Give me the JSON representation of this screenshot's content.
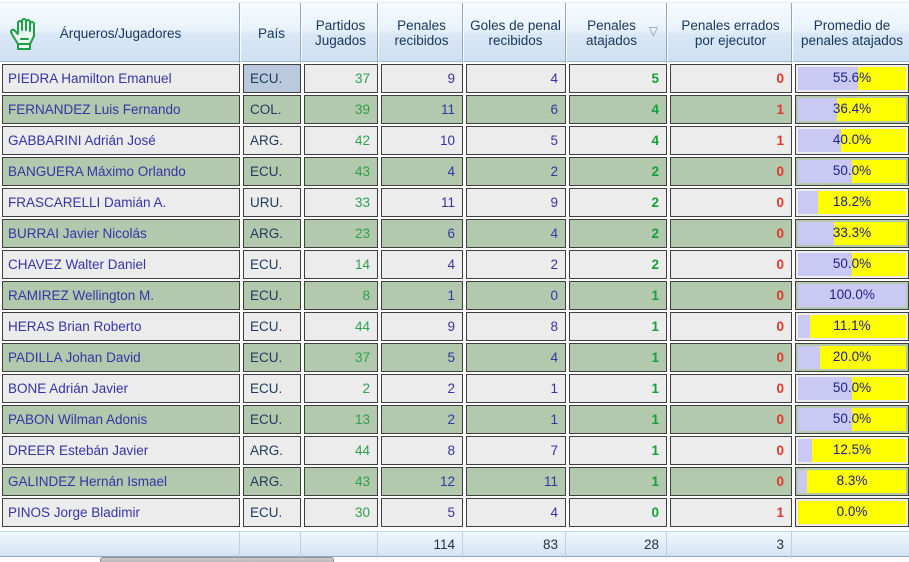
{
  "table": {
    "columns": [
      {
        "label": "Árqueros/Jugadores"
      },
      {
        "label": "País"
      },
      {
        "label": "Partidos Jugados"
      },
      {
        "label": "Penales recibidos"
      },
      {
        "label": "Goles de penal recibidos"
      },
      {
        "label": "Penales atajados",
        "sort_indicator": "▽",
        "sorted": "descending"
      },
      {
        "label": "Penales errados por ejecutor"
      },
      {
        "label": "Promedio de penales atajados"
      }
    ],
    "header_icon": "goalkeeper-glove-icon",
    "rows": [
      {
        "name": "PIEDRA Hamilton Emanuel",
        "pais": "ECU.",
        "pj": "37",
        "pr": "9",
        "gpr": "4",
        "pa": "5",
        "pe": "0",
        "prom": "55.6%",
        "pct": 55.6,
        "pais_selected": true
      },
      {
        "name": "FERNANDEZ Luis Fernando",
        "pais": "COL.",
        "pj": "39",
        "pr": "11",
        "gpr": "6",
        "pa": "4",
        "pe": "1",
        "prom": "36.4%",
        "pct": 36.4
      },
      {
        "name": "GABBARINI Adrián José",
        "pais": "ARG.",
        "pj": "42",
        "pr": "10",
        "gpr": "5",
        "pa": "4",
        "pe": "1",
        "prom": "40.0%",
        "pct": 40
      },
      {
        "name": "BANGUERA Máximo Orlando",
        "pais": "ECU.",
        "pj": "43",
        "pr": "4",
        "gpr": "2",
        "pa": "2",
        "pe": "0",
        "prom": "50.0%",
        "pct": 50
      },
      {
        "name": "FRASCARELLI Damián A.",
        "pais": "URU.",
        "pj": "33",
        "pr": "11",
        "gpr": "9",
        "pa": "2",
        "pe": "0",
        "prom": "18.2%",
        "pct": 18.2
      },
      {
        "name": "BURRAI Javier Nicolás",
        "pais": "ARG.",
        "pj": "23",
        "pr": "6",
        "gpr": "4",
        "pa": "2",
        "pe": "0",
        "prom": "33.3%",
        "pct": 33.3
      },
      {
        "name": "CHAVEZ Walter Daniel",
        "pais": "ECU.",
        "pj": "14",
        "pr": "4",
        "gpr": "2",
        "pa": "2",
        "pe": "0",
        "prom": "50.0%",
        "pct": 50
      },
      {
        "name": "RAMIREZ Wellington M.",
        "pais": "ECU.",
        "pj": "8",
        "pr": "1",
        "gpr": "0",
        "pa": "1",
        "pe": "0",
        "prom": "100.0%",
        "pct": 100
      },
      {
        "name": "HERAS Brian Roberto",
        "pais": "ECU.",
        "pj": "44",
        "pr": "9",
        "gpr": "8",
        "pa": "1",
        "pe": "0",
        "prom": "11.1%",
        "pct": 11.1
      },
      {
        "name": "PADILLA Johan David",
        "pais": "ECU.",
        "pj": "37",
        "pr": "5",
        "gpr": "4",
        "pa": "1",
        "pe": "0",
        "prom": "20.0%",
        "pct": 20
      },
      {
        "name": "BONE Adrián Javier",
        "pais": "ECU.",
        "pj": "2",
        "pr": "2",
        "gpr": "1",
        "pa": "1",
        "pe": "0",
        "prom": "50.0%",
        "pct": 50
      },
      {
        "name": "PABON Wilman Adonis",
        "pais": "ECU.",
        "pj": "13",
        "pr": "2",
        "gpr": "1",
        "pa": "1",
        "pe": "0",
        "prom": "50.0%",
        "pct": 50
      },
      {
        "name": "DREER Estebán Javier",
        "pais": "ARG.",
        "pj": "44",
        "pr": "8",
        "gpr": "7",
        "pa": "1",
        "pe": "0",
        "prom": "12.5%",
        "pct": 12.5
      },
      {
        "name": "GALINDEZ Hernán Ismael",
        "pais": "ARG.",
        "pj": "43",
        "pr": "12",
        "gpr": "11",
        "pa": "1",
        "pe": "0",
        "prom": "8.3%",
        "pct": 8.3
      },
      {
        "name": "PINOS Jorge Bladimir",
        "pais": "ECU.",
        "pj": "30",
        "pr": "5",
        "gpr": "4",
        "pa": "0",
        "pe": "1",
        "prom": "0.0%",
        "pct": 0
      }
    ],
    "totals": {
      "pr": "114",
      "gpr": "83",
      "pa": "28",
      "pe": "3"
    }
  },
  "colors": {
    "row_light": "#ececec",
    "row_green": "#b3c9ae",
    "selected_cell": "#bac9dd",
    "name_text": "#3733a5",
    "green_number": "#2da04d",
    "navy_number": "#3733a5",
    "saved_green": "#12a038",
    "missed_red": "#e5352a",
    "bar_fill": "#c9c9f4",
    "bar_bg": "#ffff00",
    "header_text": "#17365d",
    "glove_icon_green": "#1e9e46"
  }
}
